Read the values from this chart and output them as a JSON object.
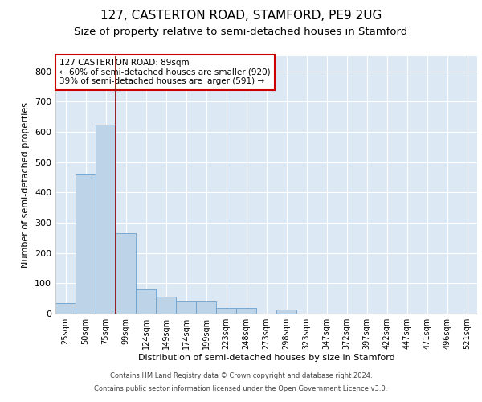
{
  "title1": "127, CASTERTON ROAD, STAMFORD, PE9 2UG",
  "title2": "Size of property relative to semi-detached houses in Stamford",
  "xlabel": "Distribution of semi-detached houses by size in Stamford",
  "ylabel": "Number of semi-detached properties",
  "bin_labels": [
    "25sqm",
    "50sqm",
    "75sqm",
    "99sqm",
    "124sqm",
    "149sqm",
    "174sqm",
    "199sqm",
    "223sqm",
    "248sqm",
    "273sqm",
    "298sqm",
    "323sqm",
    "347sqm",
    "372sqm",
    "397sqm",
    "422sqm",
    "447sqm",
    "471sqm",
    "496sqm",
    "521sqm"
  ],
  "bar_heights": [
    35,
    460,
    625,
    265,
    80,
    55,
    40,
    40,
    18,
    18,
    0,
    12,
    0,
    0,
    0,
    0,
    0,
    0,
    0,
    0,
    0
  ],
  "bar_color": "#bdd4e8",
  "bar_edge_color": "#6aa0cc",
  "annotation_line1": "127 CASTERTON ROAD: 89sqm",
  "annotation_line2": "← 60% of semi-detached houses are smaller (920)",
  "annotation_line3": "39% of semi-detached houses are larger (591) →",
  "vline_color": "#8b0000",
  "annotation_box_edgecolor": "#cc0000",
  "background_color": "#dde8f5",
  "ylim": [
    0,
    850
  ],
  "yticks": [
    0,
    100,
    200,
    300,
    400,
    500,
    600,
    700,
    800
  ],
  "title1_fontsize": 11,
  "title2_fontsize": 9.5,
  "footer1": "Contains HM Land Registry data © Crown copyright and database right 2024.",
  "footer2": "Contains public sector information licensed under the Open Government Licence v3.0."
}
